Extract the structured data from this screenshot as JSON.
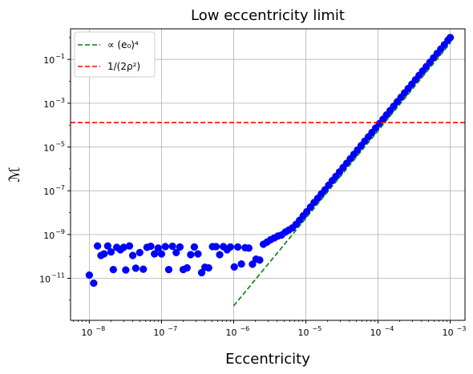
{
  "chart_data": {
    "type": "scatter",
    "title": "Low eccentricity limit",
    "xlabel": "Eccentricity",
    "ylabel": "ℳ",
    "xscale": "log",
    "yscale": "log",
    "xlim": [
      5.5e-09,
      0.0016
    ],
    "ylim": [
      1.2e-13,
      2.5
    ],
    "grid": true,
    "legend_position": "top-left",
    "x_ticks": [
      {
        "value": 1e-08,
        "base": "10",
        "exp": "−8"
      },
      {
        "value": 1e-07,
        "base": "10",
        "exp": "−7"
      },
      {
        "value": 1e-06,
        "base": "10",
        "exp": "−6"
      },
      {
        "value": 1e-05,
        "base": "10",
        "exp": "−5"
      },
      {
        "value": 0.0001,
        "base": "10",
        "exp": "−4"
      },
      {
        "value": 0.001,
        "base": "10",
        "exp": "−3"
      }
    ],
    "y_ticks": [
      {
        "value": 1e-11,
        "base": "10",
        "exp": "−11"
      },
      {
        "value": 1e-09,
        "base": "10",
        "exp": "−9"
      },
      {
        "value": 1e-07,
        "base": "10",
        "exp": "−7"
      },
      {
        "value": 1e-05,
        "base": "10",
        "exp": "−5"
      },
      {
        "value": 0.001,
        "base": "10",
        "exp": "−3"
      },
      {
        "value": 0.1,
        "base": "10",
        "exp": "−1"
      }
    ],
    "series": [
      {
        "name": "",
        "kind": "scatter",
        "color": "#0000ff",
        "points": [
          [
            1e-08,
            1.4e-11
          ],
          [
            1.15e-08,
            6e-12
          ],
          [
            1.3e-08,
            3e-10
          ],
          [
            1.45e-08,
            1.1e-10
          ],
          [
            1.6e-08,
            1.3e-10
          ],
          [
            1.8e-08,
            3e-10
          ],
          [
            2e-08,
            1.6e-10
          ],
          [
            2.15e-08,
            2.5e-11
          ],
          [
            2.4e-08,
            2.6e-10
          ],
          [
            2.7e-08,
            2e-10
          ],
          [
            3e-08,
            2.6e-10
          ],
          [
            3.2e-08,
            2.4e-11
          ],
          [
            3.6e-08,
            3e-10
          ],
          [
            4e-08,
            1.1e-10
          ],
          [
            4.4e-08,
            2.9e-11
          ],
          [
            5e-08,
            1.5e-10
          ],
          [
            5.6e-08,
            2.6e-11
          ],
          [
            6.3e-08,
            2.6e-10
          ],
          [
            7.1e-08,
            2.9e-10
          ],
          [
            8e-08,
            1.3e-10
          ],
          [
            9e-08,
            2.4e-10
          ],
          [
            1e-07,
            1.3e-10
          ],
          [
            1.13e-07,
            2.8e-10
          ],
          [
            1.26e-07,
            2.5e-11
          ],
          [
            1.42e-07,
            2.9e-10
          ],
          [
            1.6e-07,
            1.5e-10
          ],
          [
            1.8e-07,
            2.7e-10
          ],
          [
            2e-07,
            2.5e-11
          ],
          [
            2.26e-07,
            3e-11
          ],
          [
            2.54e-07,
            1.2e-10
          ],
          [
            2.85e-07,
            2.7e-10
          ],
          [
            3.2e-07,
            1.3e-10
          ],
          [
            3.6e-07,
            1.8e-11
          ],
          [
            4e-07,
            3.2e-11
          ],
          [
            4.5e-07,
            3e-11
          ],
          [
            5.1e-07,
            2.8e-10
          ],
          [
            5.7e-07,
            2.8e-10
          ],
          [
            6.4e-07,
            1.2e-10
          ],
          [
            7.2e-07,
            2.8e-10
          ],
          [
            8.1e-07,
            2e-10
          ],
          [
            9e-07,
            2.7e-10
          ],
          [
            1.02e-06,
            3.3e-11
          ],
          [
            1.14e-06,
            2.7e-10
          ],
          [
            1.28e-06,
            4.5e-11
          ],
          [
            1.44e-06,
            2.5e-10
          ],
          [
            1.62e-06,
            2.4e-10
          ],
          [
            1.82e-06,
            4.4e-11
          ],
          [
            2.04e-06,
            7.5e-11
          ],
          [
            2.29e-06,
            6.8e-11
          ],
          [
            2.58e-06,
            3.6e-10
          ],
          [
            2.9e-06,
            4.5e-10
          ],
          [
            3.25e-06,
            5.8e-10
          ],
          [
            3.65e-06,
            7e-10
          ],
          [
            4.1e-06,
            8.5e-10
          ],
          [
            4.6e-06,
            9.5e-10
          ],
          [
            5.2e-06,
            1.3e-09
          ],
          [
            5.8e-06,
            1.6e-09
          ],
          [
            6.5e-06,
            2e-09
          ],
          [
            7.3e-06,
            2.9e-09
          ],
          [
            8.2e-06,
            4.5e-09
          ],
          [
            9.2e-06,
            7.2e-09
          ],
          [
            1.03e-05,
            1.1e-08
          ],
          [
            1.16e-05,
            1.8e-08
          ],
          [
            1.3e-05,
            2.9e-08
          ],
          [
            1.46e-05,
            4.5e-08
          ],
          [
            1.64e-05,
            7.2e-08
          ],
          [
            1.84e-05,
            1.1e-07
          ],
          [
            2.07e-05,
            1.8e-07
          ],
          [
            2.32e-05,
            2.9e-07
          ],
          [
            2.6e-05,
            4.5e-07
          ],
          [
            2.92e-05,
            7.2e-07
          ],
          [
            3.28e-05,
            1.15e-06
          ],
          [
            3.68e-05,
            1.8e-06
          ],
          [
            4.13e-05,
            2.9e-06
          ],
          [
            4.63e-05,
            4.6e-06
          ],
          [
            5.2e-05,
            7.3e-06
          ],
          [
            5.84e-05,
            1.16e-05
          ],
          [
            6.55e-05,
            1.84e-05
          ],
          [
            7.35e-05,
            2.9e-05
          ],
          [
            8.25e-05,
            4.6e-05
          ],
          [
            9.26e-05,
            7.3e-05
          ],
          [
            0.000104,
            0.000116
          ],
          [
            0.000117,
            0.000184
          ],
          [
            0.000131,
            0.00029
          ],
          [
            0.000147,
            0.00046
          ],
          [
            0.000165,
            0.00073
          ],
          [
            0.000185,
            0.00117
          ],
          [
            0.000208,
            0.00185
          ],
          [
            0.000233,
            0.00295
          ],
          [
            0.000262,
            0.0047
          ],
          [
            0.000294,
            0.0074
          ],
          [
            0.00033,
            0.0117
          ],
          [
            0.00037,
            0.0186
          ],
          [
            0.000415,
            0.0295
          ],
          [
            0.000466,
            0.047
          ],
          [
            0.000523,
            0.074
          ],
          [
            0.000587,
            0.118
          ],
          [
            0.000658,
            0.187
          ],
          [
            0.000739,
            0.297
          ],
          [
            0.000829,
            0.47
          ],
          [
            0.00093,
            0.75
          ],
          [
            0.001,
            1.0
          ]
        ]
      },
      {
        "name": "∝ (e₀)⁴",
        "kind": "line",
        "style": "dashed",
        "color": "#008000",
        "x": [
          1e-06,
          0.001
        ],
        "y": [
          5.5e-13,
          0.55
        ]
      },
      {
        "name": "1/(2ρ²)",
        "kind": "hline",
        "style": "dashed",
        "color": "#ff0000",
        "y": 0.00013
      }
    ]
  }
}
